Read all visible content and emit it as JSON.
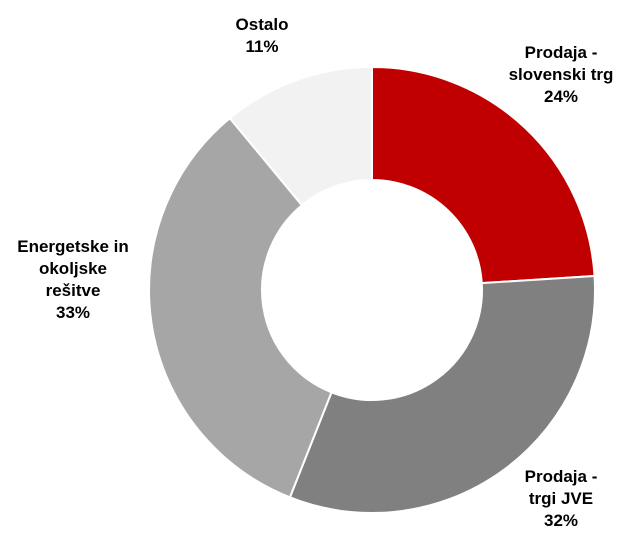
{
  "chart_data": {
    "type": "pie",
    "variant": "donut",
    "slices": [
      {
        "label": [
          "Prodaja -",
          "slovenski trg"
        ],
        "value": 24,
        "value_label": "24%",
        "color": "#c00000"
      },
      {
        "label": [
          "Prodaja  -",
          "trgi JVE"
        ],
        "value": 32,
        "value_label": "32%",
        "color": "#808080"
      },
      {
        "label": [
          "Energetske in",
          "okoljske",
          "rešitve"
        ],
        "value": 33,
        "value_label": "33%",
        "color": "#a6a6a6"
      },
      {
        "label": [
          "Ostalo"
        ],
        "value": 11,
        "value_label": "11%",
        "color": "#f2f2f2"
      }
    ],
    "start_angle_deg": 0,
    "direction": "clockwise",
    "legend": "none"
  }
}
